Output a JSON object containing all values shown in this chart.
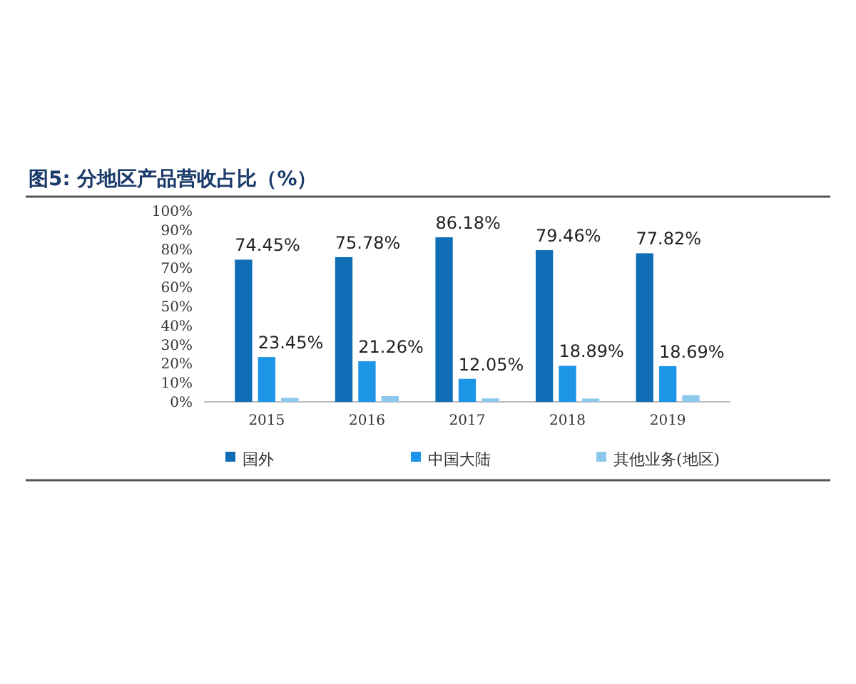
{
  "chart_data": {
    "type": "bar",
    "title": "图5:  分地区产品营收占比（%）",
    "categories": [
      "2015",
      "2016",
      "2017",
      "2018",
      "2019"
    ],
    "series": [
      {
        "name": "国外",
        "color": "#0f6eb5",
        "values": [
          74.45,
          75.78,
          86.18,
          79.46,
          77.82
        ],
        "value_labels": [
          "74.45%",
          "75.78%",
          "86.18%",
          "79.46%",
          "77.82%"
        ]
      },
      {
        "name": "中国大陆",
        "color": "#1e96e8",
        "values": [
          23.45,
          21.26,
          12.05,
          18.89,
          18.69
        ],
        "value_labels": [
          "23.45%",
          "21.26%",
          "12.05%",
          "18.89%",
          "18.69%"
        ]
      },
      {
        "name": "其他业务(地区)",
        "color": "#8cc8ec",
        "values": [
          2.1,
          3.0,
          1.8,
          1.7,
          3.5
        ]
      }
    ],
    "ylim": [
      0,
      100
    ],
    "yticks": [
      {
        "value": 0,
        "label": "0%"
      },
      {
        "value": 10,
        "label": "10%"
      },
      {
        "value": 20,
        "label": "20%"
      },
      {
        "value": 30,
        "label": "30%"
      },
      {
        "value": 40,
        "label": "40%"
      },
      {
        "value": 50,
        "label": "50%"
      },
      {
        "value": 60,
        "label": "60%"
      },
      {
        "value": 70,
        "label": "70%"
      },
      {
        "value": 80,
        "label": "80%"
      },
      {
        "value": 90,
        "label": "90%"
      },
      {
        "value": 100,
        "label": "100%"
      }
    ],
    "legend": "bottom"
  }
}
